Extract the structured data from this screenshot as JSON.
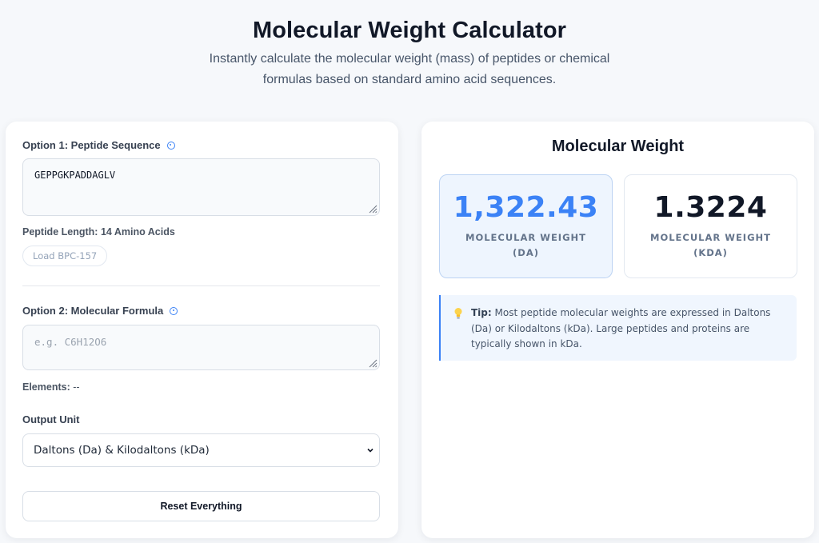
{
  "header": {
    "title": "Molecular Weight Calculator",
    "subtitle": "Instantly calculate the molecular weight (mass) of peptides or chemical formulas based on standard amino acid sequences."
  },
  "left": {
    "option1_label": "Option 1: Peptide Sequence",
    "sequence_value": "GEPPGKPADDAGLV",
    "peptide_length_label": "Peptide Length:",
    "peptide_length_value": "14 Amino Acids",
    "load_button": "Load BPC-157",
    "option2_label": "Option 2: Molecular Formula",
    "formula_placeholder": "e.g. C6H12O6",
    "formula_value": "",
    "elements_label": "Elements:",
    "elements_value": "--",
    "output_unit_label": "Output Unit",
    "output_unit_selected": "Daltons (Da) & Kilodaltons (kDa)",
    "reset_button": "Reset Everything"
  },
  "right": {
    "title": "Molecular Weight",
    "da_value": "1,322.43",
    "da_label": "MOLECULAR WEIGHT (DA)",
    "kda_value": "1.3224",
    "kda_label": "MOLECULAR WEIGHT (KDA)",
    "tip_label": "Tip:",
    "tip_text": "Most peptide molecular weights are expressed in Daltons (Da) or Kilodaltons (kDa). Large peptides and proteins are typically shown in kDa."
  },
  "icons": {
    "info": "info-icon",
    "lightbulb": "lightbulb-icon",
    "chevron": "chevron-down-icon",
    "resize": "resize-grip-icon"
  },
  "colors": {
    "accent": "#3b82f6",
    "background": "#f6f8fb",
    "card": "#ffffff",
    "tip_bg": "#f0f6fe"
  }
}
